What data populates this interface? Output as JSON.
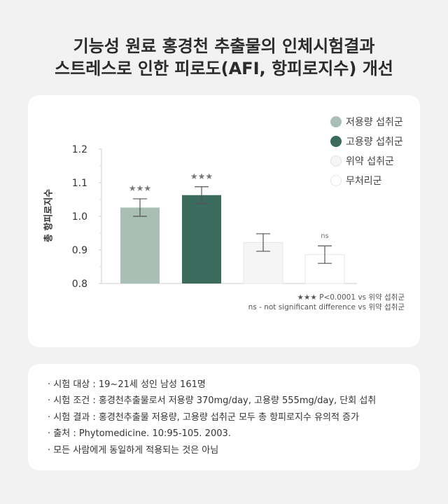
{
  "header": {
    "title_line1": "기능성 원료 홍경천 추출물의 인체시험결과",
    "title_line2": "스트레스로 인한 피로도(AFI, 항피로지수) 개선"
  },
  "chart_data": {
    "type": "bar",
    "title": "",
    "xlabel": "",
    "ylabel": "총 항피로지수",
    "ylim": [
      0.8,
      1.2
    ],
    "yticks": [
      "0.8",
      "0.9",
      "1.0",
      "1.1",
      "1.2"
    ],
    "categories": [
      "저용량 섭취군",
      "고용량 섭취군",
      "위약 섭취군",
      "무처리군"
    ],
    "values": [
      1.026,
      1.063,
      0.922,
      0.886
    ],
    "error": [
      0.026,
      0.025,
      0.026,
      0.026
    ],
    "significance": [
      "★★★",
      "★★★",
      "",
      "ns"
    ],
    "colors": [
      "#a9bfb5",
      "#3a6b5c",
      "#f5f5f5",
      "#ffffff"
    ],
    "grid": false,
    "legend": "top-right",
    "legend_entries": [
      "저용량 섭취군",
      "고용량 섭취군",
      "위약 섭취군",
      "무처리군"
    ],
    "notes": [
      "★★★ P<0.0001 vs 위약 섭취군",
      "ns - not significant difference vs 위약 섭취군"
    ]
  },
  "info": {
    "items": [
      "시험 대상 : 19~21세 성인 남성 161명",
      "시험 조건 : 홍경천추출물로서 저용량 370mg/day, 고용량 555mg/day, 단회 섭취",
      "시험 결과 : 홍경천추출물 저용량, 고용량 섭취군 모두 총 항피로지수 유의적 증가",
      "출처 : Phytomedicine. 10:95-105. 2003.",
      "모든 사람에게 동일하게 적용되는 것은 아님"
    ]
  }
}
